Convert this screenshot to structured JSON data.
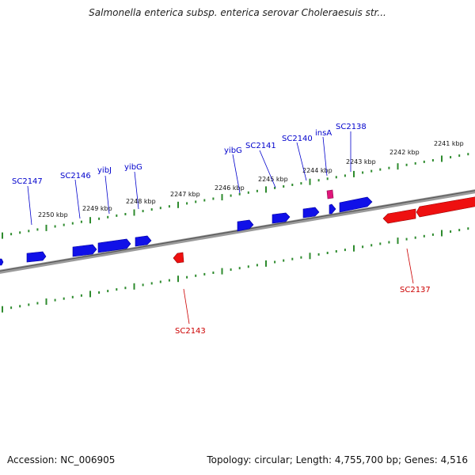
{
  "title": "Salmonella enterica subsp. enterica serovar Choleraesuis str...",
  "accession": "Accession: NC_006905",
  "summary": "Topology: circular; Length: 4,755,700 bp; Genes: 4,516",
  "colors": {
    "forward_gene": "#0000ee",
    "reverse_gene": "#ee0000",
    "mobile_element": "#e0157a",
    "tick": "#2e8b2e",
    "backbone": "#808080"
  },
  "kbp_labels": [
    "2241 kbp",
    "2242 kbp",
    "2243 kbp",
    "2244 kbp",
    "2245 kbp",
    "2246 kbp",
    "2247 kbp",
    "2248 kbp",
    "2249 kbp",
    "2250 kbp"
  ],
  "forward_labels": [
    "SC2147",
    "SC2146",
    "yibJ",
    "yibG",
    "yibG",
    "SC2141",
    "SC2140",
    "insA",
    "SC2138"
  ],
  "reverse_labels": [
    "SC2143",
    "SC2137"
  ]
}
